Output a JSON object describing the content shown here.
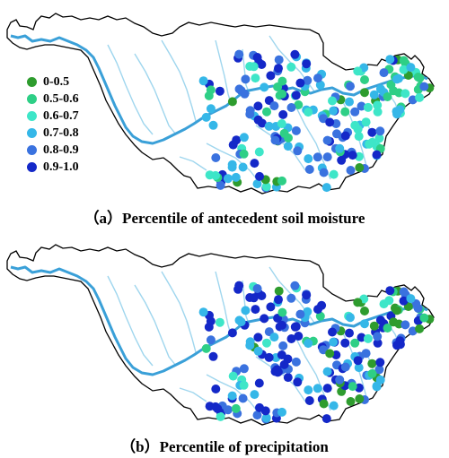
{
  "legend": {
    "classes": [
      {
        "label": "0-0.5",
        "color": "#2e9c2e"
      },
      {
        "label": "0.5-0.6",
        "color": "#2ecf86"
      },
      {
        "label": "0.6-0.7",
        "color": "#3ee6c8"
      },
      {
        "label": "0.7-0.8",
        "color": "#35b7e8"
      },
      {
        "label": "0.8-0.9",
        "color": "#3a72df"
      },
      {
        "label": "0.9-1.0",
        "color": "#1428c8"
      }
    ]
  },
  "colors": {
    "basin_outline": "#000000",
    "main_river": "#3aa0d8",
    "tributary": "#9fd6ee"
  },
  "panels": [
    {
      "id": "a",
      "caption": "（a）Percentile of antecedent soil moisture",
      "distribution": [
        0.06,
        0.1,
        0.16,
        0.24,
        0.22,
        0.22
      ]
    },
    {
      "id": "b",
      "caption": "（b）Percentile of precipitation",
      "distribution": [
        0.07,
        0.05,
        0.07,
        0.18,
        0.23,
        0.4
      ]
    }
  ]
}
